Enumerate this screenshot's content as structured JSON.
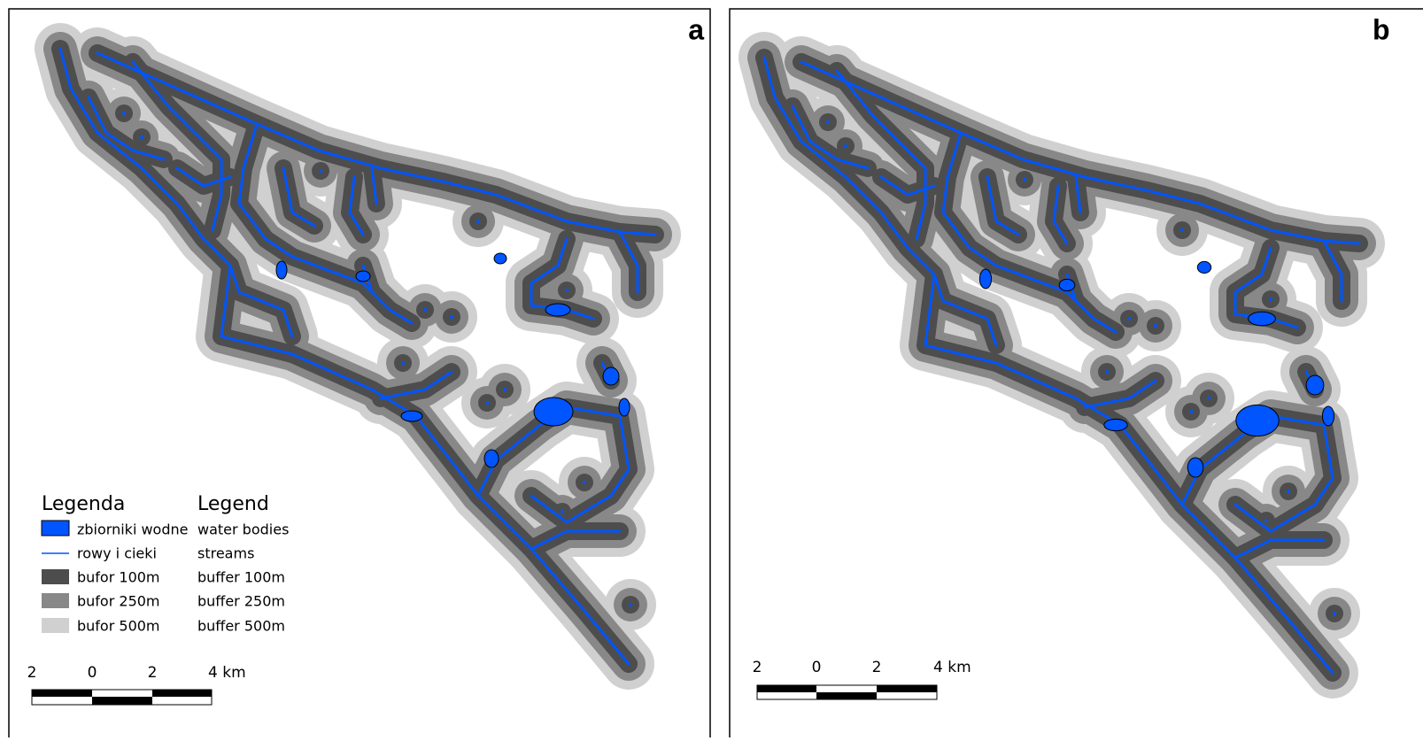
{
  "panels": [
    {
      "label": "a"
    },
    {
      "label": "b"
    }
  ],
  "legend": {
    "title": "Legenda",
    "title_en": "Legend",
    "items": [
      {
        "label": "zbiorniki wodne",
        "label_en": "water bodies"
      },
      {
        "label": "rowy i cieki",
        "label_en": "streams"
      },
      {
        "label": "bufor 100m",
        "label_en": "buffer 100m"
      },
      {
        "label": "bufor 250m",
        "label_en": "buffer 250m"
      },
      {
        "label": "bufor 500m",
        "label_en": "buffer 500m"
      }
    ]
  },
  "scale_bars": [
    {
      "ticks": [
        "2",
        "0",
        "2",
        "4 km"
      ]
    },
    {
      "ticks": [
        "2",
        "0",
        "2",
        "4 km"
      ]
    }
  ]
}
